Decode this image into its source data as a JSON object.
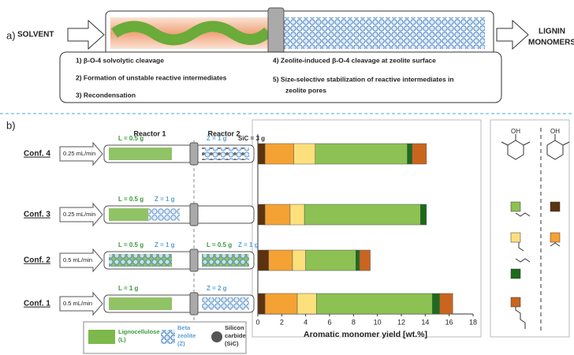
{
  "panel_a": {
    "label": "a)",
    "inlet": "SOLVENT",
    "outlet": [
      "LIGNIN",
      "MONOMERS"
    ],
    "steps_left": [
      "1) β-O-4 solvolytic cleavage",
      "2) Formation of unstable reactive intermediates",
      "3) Recondensation"
    ],
    "steps_right": [
      [
        "4) Zeolite-induced β-O-4 cleavage at zeolite surface"
      ],
      [
        "5) Size-selective stabilization of reactive  intermediates in",
        "zeolite pores"
      ]
    ]
  },
  "panel_b": {
    "label": "b)",
    "reactors": [
      "Reactor 1",
      "Reactor 2"
    ],
    "configs": [
      {
        "flow": "0.25 mL/min",
        "r1": [
          {
            "text": "L = 0.5 g",
            "color": "#3a9a3a"
          }
        ],
        "r2": [
          {
            "text": "Z = 1 g",
            "color": "#5aa0d8"
          },
          {
            "text": "SiC = 3 g",
            "color": "#333333"
          }
        ]
      },
      {
        "flow": "0.25 mL/min",
        "r1": [
          {
            "text": "L = 0.5 g",
            "color": "#3a9a3a"
          },
          {
            "text": "Z = 1 g",
            "color": "#5aa0d8"
          }
        ],
        "r2": []
      },
      {
        "flow": "0.5 mL/min",
        "r1": [
          {
            "text": "L = 0.5 g",
            "color": "#3a9a3a"
          },
          {
            "text": "Z = 1 g",
            "color": "#5aa0d8"
          }
        ],
        "r2": [
          {
            "text": "L = 0.5 g",
            "color": "#3a9a3a"
          },
          {
            "text": "Z = 1 g",
            "color": "#5aa0d8"
          }
        ]
      },
      {
        "flow": "0.5 mL/min",
        "r1": [
          {
            "text": "L = 1 g",
            "color": "#3a9a3a"
          }
        ],
        "r2": [
          {
            "text": "Z = 2 g",
            "color": "#5aa0d8"
          }
        ]
      }
    ],
    "legend": [
      {
        "lines": [
          "Lignocellulose",
          "(L)"
        ],
        "color": "#3a9a3a"
      },
      {
        "lines": [
          "Beta",
          "zeolite",
          "(Z)"
        ],
        "color": "#5aa0d8"
      },
      {
        "lines": [
          "Silicon",
          "carbide",
          "(SiC)"
        ],
        "color": "#333333"
      }
    ]
  },
  "chart_data": {
    "type": "bar",
    "orientation": "horizontal",
    "stacked": true,
    "categories": [
      "Conf. 4",
      "Conf. 3",
      "Conf. 2",
      "Conf. 1"
    ],
    "series": [
      {
        "color": "#5c3310",
        "values": [
          0.6,
          0.6,
          0.9,
          0.6
        ]
      },
      {
        "color": "#f4a233",
        "values": [
          2.4,
          2.1,
          2.0,
          2.7
        ]
      },
      {
        "color": "#fbe07c",
        "values": [
          1.8,
          1.2,
          1.1,
          1.6
        ]
      },
      {
        "color": "#8dc153",
        "values": [
          7.7,
          9.7,
          4.2,
          9.7
        ]
      },
      {
        "color": "#1c6b1c",
        "values": [
          0.4,
          0.5,
          0.3,
          0.6
        ]
      },
      {
        "color": "#c9651f",
        "values": [
          1.2,
          0,
          0.9,
          1.1
        ]
      }
    ],
    "xlabel": "Aromatic monomer yield [wt.%]",
    "xlim": [
      0,
      18
    ],
    "xticks": [
      0,
      2,
      4,
      6,
      8,
      10,
      12,
      14,
      16,
      18
    ]
  }
}
